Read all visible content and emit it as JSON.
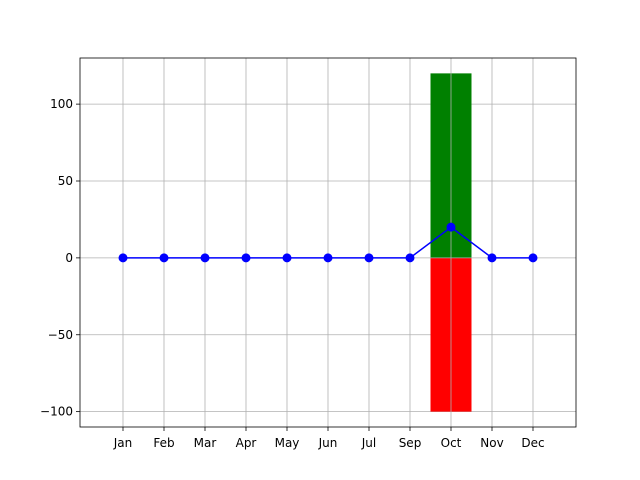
{
  "chart_data": {
    "type": "bar",
    "categories": [
      "Jan",
      "Feb",
      "Mar",
      "Apr",
      "May",
      "Jun",
      "Jul",
      "Sep",
      "Oct",
      "Nov",
      "Dec"
    ],
    "ylim": [
      -110,
      130
    ],
    "yticks": [
      -100,
      -50,
      0,
      50,
      100
    ],
    "ytick_labels": [
      "−100",
      "−50",
      "0",
      "50",
      "100"
    ],
    "grid": true,
    "bar_series": [
      {
        "values": [
          0,
          0,
          0,
          0,
          0,
          0,
          0,
          0,
          120,
          0,
          0
        ],
        "color": "#008000"
      },
      {
        "values": [
          0,
          0,
          0,
          0,
          0,
          0,
          0,
          0,
          -100,
          0,
          0
        ],
        "color": "#ff0000"
      }
    ],
    "line_series": [
      {
        "values": [
          0,
          0,
          0,
          0,
          0,
          0,
          0,
          0,
          20,
          0,
          0
        ],
        "color": "#0000ff",
        "marker": "circle"
      }
    ]
  }
}
